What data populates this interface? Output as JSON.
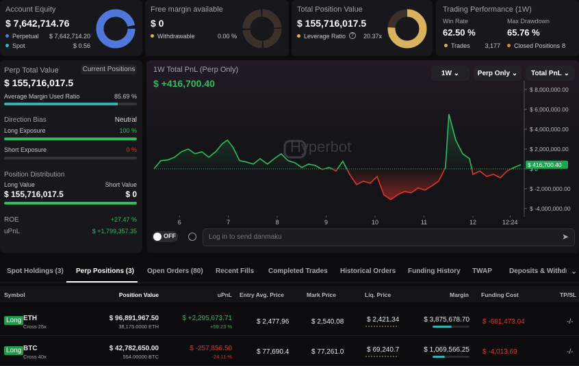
{
  "cards": [
    {
      "title": "Account Equity",
      "value": "$ 7,642,714.76",
      "rows": [
        {
          "label": "Perpetual",
          "value": "$ 7,642,714.20"
        },
        {
          "label": "Spot",
          "value": "$ 0.56"
        }
      ]
    },
    {
      "title": "Free margin available",
      "value": "$ 0",
      "rows": [
        {
          "label": "Withdrawable",
          "value": "0.00 %"
        }
      ]
    },
    {
      "title": "Total Position Value",
      "value": "$ 155,716,017.5",
      "rows": [
        {
          "label": "Leverage Ratio",
          "value": "20.37x"
        }
      ]
    }
  ],
  "performance": {
    "title": "Trading Performance (1W)",
    "win_rate_label": "Win Rate",
    "win_rate": "62.50 %",
    "drawdown_label": "Max Drawdown",
    "drawdown": "65.76 %",
    "trades_label": "Trades",
    "trades": "3,177",
    "closed_label": "Closed Positions",
    "closed": "8"
  },
  "perp": {
    "title": "Perp Total Value",
    "button": "Current Positions",
    "value": "$ 155,716,017.5",
    "margin_label": "Average Margin Used Ratio",
    "margin": {
      "value": 85.69,
      "label": "85.69 %"
    },
    "bias_label": "Direction Bias",
    "bias": "Neutral",
    "long_label": "Long Exposure",
    "long": {
      "value": 100,
      "label": "100 %"
    },
    "short_label": "Short Exposure",
    "short": {
      "value": 0,
      "label": "0 %"
    },
    "dist_label": "Position Distribution",
    "long_value_label": "Long Value",
    "short_value_label": "Short Value",
    "long_value": "$ 155,716,017.5",
    "short_value": "$ 0",
    "roe_label": "ROE",
    "roe": "+27.47 %",
    "upnl_label": "uPnL",
    "upnl": "$ +1,799,357.35"
  },
  "chart_data": {
    "type": "line",
    "title": "1W Total PnL (Perp Only)",
    "headline": "$ +416,700.40",
    "controls": [
      "1W",
      "Perp Only",
      "Total PnL"
    ],
    "watermark": "Hyperbot",
    "last_label": "$ 416,700.40",
    "color": "#2ebd5f",
    "negative_color": "#e0352b",
    "x": [
      5.48,
      5.62,
      5.76,
      5.9,
      6.04,
      6.18,
      6.32,
      6.46,
      6.6,
      6.74,
      6.88,
      6.98,
      7.09,
      7.23,
      7.37,
      7.51,
      7.65,
      7.8,
      7.94,
      8.08,
      8.22,
      8.36,
      8.5,
      8.64,
      8.78,
      8.92,
      9.06,
      9.2,
      9.34,
      9.48,
      9.62,
      9.76,
      9.9,
      10.04,
      10.18,
      10.32,
      10.46,
      10.6,
      10.74,
      10.88,
      11.02,
      11.16,
      11.3,
      11.44,
      11.51,
      11.65,
      11.79,
      11.93,
      12.0,
      12.14,
      12.28,
      12.42,
      12.56,
      12.7,
      12.84,
      12.98
    ],
    "values": [
      0,
      830000,
      900000,
      1170000,
      1720000,
      2000000,
      1520000,
      1720000,
      1170000,
      1720000,
      2550000,
      2900000,
      2210000,
      830000,
      690000,
      480000,
      1030000,
      480000,
      1030000,
      1520000,
      830000,
      620000,
      140000,
      480000,
      340000,
      -70000,
      140000,
      -210000,
      760000,
      -550000,
      -1590000,
      -1240000,
      -1450000,
      -760000,
      -2620000,
      -3100000,
      -2620000,
      -2280000,
      -2410000,
      -1930000,
      -2140000,
      -1720000,
      -1240000,
      140000,
      5520000,
      2900000,
      1520000,
      1030000,
      -550000,
      -210000,
      -760000,
      -550000,
      -900000,
      -210000,
      140000,
      416700.4
    ],
    "xlim": [
      5.48,
      13.05
    ],
    "xticks": [
      6,
      7,
      8,
      9,
      10,
      11,
      12,
      {
        "value": 12.76,
        "label": "12:24"
      }
    ],
    "ylim": [
      -4700000,
      8400000
    ],
    "yticks": [
      {
        "value": 8000000,
        "label": "$ 8,000,000.00"
      },
      {
        "value": 6000000,
        "label": "$ 6,000,000.00"
      },
      {
        "value": 4000000,
        "label": "$ 4,000,000.00"
      },
      {
        "value": 2000000,
        "label": "$ 2,000,000.00"
      },
      {
        "value": 0,
        "label": "$ 0"
      },
      {
        "value": -2000000,
        "label": "$ -2,000,000.00"
      },
      {
        "value": -4000000,
        "label": "$ -4,000,000.00"
      }
    ]
  },
  "danmaku": {
    "toggle": "OFF",
    "placeholder": "Log in to send danmaku"
  },
  "tabs": {
    "items": [
      "Spot Holdings (3)",
      "Perp Positions (3)",
      "Open Orders (80)",
      "Recent Fills",
      "Completed Trades",
      "Historical Orders",
      "Funding History",
      "TWAP",
      "Deposits & Withdra"
    ]
  },
  "table": {
    "headers": [
      "Symbol",
      "Position Value",
      "uPnL",
      "Entry Avg. Price",
      "Mark Price",
      "Liq. Price",
      "Margin",
      "Funding Cost",
      "TP/SL"
    ],
    "rows": [
      {
        "side": "Long",
        "symbol": "ETH",
        "mode": "Cross 25x",
        "value": "$ 96,891,967.50",
        "size": "38,175.0000 ETH",
        "upnl": "$ +2,295,673.71",
        "upnl_pct": "+59.23 %",
        "entry": "$ 2,477.96",
        "mark": "$ 2,540.08",
        "liq": "$ 2,421.34",
        "margin": "$ 3,875,678.70",
        "funding": "$ -681,473.04",
        "tpsl": "-/-"
      },
      {
        "side": "Long",
        "symbol": "BTC",
        "mode": "Cross 40x",
        "value": "$ 42,782,650.00",
        "size": "554.00000 BTC",
        "upnl": "$ -257,856.50",
        "upnl_pct": "-24.11 %",
        "entry": "$ 77,690.4",
        "mark": "$ 77,261.0",
        "liq": "$ 69,240.7",
        "margin": "$ 1,069,566.25",
        "funding": "$ -4,013.69",
        "tpsl": "-/-"
      }
    ]
  }
}
